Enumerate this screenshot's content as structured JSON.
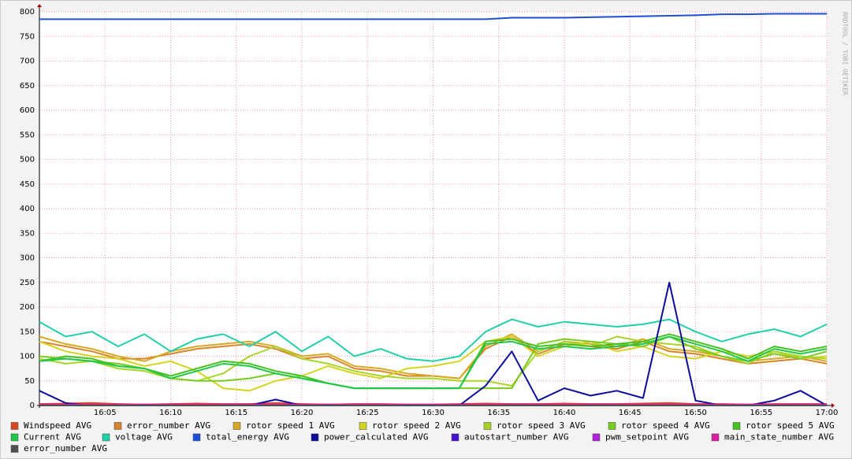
{
  "chart_data": {
    "type": "line",
    "watermark": "RRDTOOL / TOBI OETIKER",
    "x": [
      0,
      2,
      4,
      6,
      8,
      10,
      12,
      14,
      16,
      18,
      20,
      22,
      24,
      26,
      28,
      30,
      32,
      34,
      36,
      38,
      40,
      42,
      44,
      46,
      48,
      50,
      52,
      54,
      56,
      58,
      60
    ],
    "xlim": [
      0,
      60
    ],
    "xticks": [
      {
        "value": 5,
        "label": "16:05"
      },
      {
        "value": 10,
        "label": "16:10"
      },
      {
        "value": 15,
        "label": "16:15"
      },
      {
        "value": 20,
        "label": "16:20"
      },
      {
        "value": 25,
        "label": "16:25"
      },
      {
        "value": 30,
        "label": "16:30"
      },
      {
        "value": 35,
        "label": "16:35"
      },
      {
        "value": 40,
        "label": "16:40"
      },
      {
        "value": 45,
        "label": "16:45"
      },
      {
        "value": 50,
        "label": "16:50"
      },
      {
        "value": 55,
        "label": "16:55"
      },
      {
        "value": 60,
        "label": "17:00"
      }
    ],
    "ylim": [
      0,
      800
    ],
    "yticks": [
      0,
      50,
      100,
      150,
      200,
      250,
      300,
      350,
      400,
      450,
      500,
      550,
      600,
      650,
      700,
      750,
      800
    ],
    "grid": true,
    "legend": "bottom",
    "series": [
      {
        "name": "Windspeed AVG",
        "color": "#d8481c",
        "values": [
          3,
          4,
          5,
          3,
          2,
          3,
          4,
          3,
          3,
          5,
          3,
          2,
          3,
          3,
          2,
          2,
          3,
          4,
          3,
          3,
          4,
          3,
          3,
          4,
          5,
          3,
          3,
          2,
          3,
          3,
          3
        ]
      },
      {
        "name": "error_number AVG",
        "color": "#d8842a",
        "values": [
          130,
          120,
          110,
          95,
          95,
          105,
          115,
          120,
          125,
          115,
          95,
          100,
          75,
          70,
          60,
          60,
          55,
          115,
          140,
          105,
          125,
          120,
          115,
          130,
          110,
          105,
          95,
          85,
          90,
          95,
          85
        ]
      },
      {
        "name": "rotor speed 1 AVG",
        "color": "#d8a820",
        "values": [
          140,
          125,
          115,
          100,
          90,
          110,
          120,
          125,
          130,
          120,
          100,
          105,
          80,
          75,
          65,
          60,
          55,
          120,
          145,
          110,
          130,
          125,
          120,
          135,
          115,
          110,
          100,
          90,
          95,
          100,
          90
        ]
      },
      {
        "name": "rotor speed 2 AVG",
        "color": "#d4d420",
        "values": [
          130,
          110,
          100,
          95,
          80,
          90,
          70,
          35,
          30,
          50,
          60,
          80,
          65,
          55,
          75,
          80,
          90,
          130,
          140,
          100,
          120,
          130,
          110,
          120,
          100,
          95,
          110,
          100,
          110,
          95,
          100
        ]
      },
      {
        "name": "rotor speed 3 AVG",
        "color": "#a8d428",
        "values": [
          95,
          85,
          90,
          75,
          70,
          55,
          50,
          65,
          100,
          120,
          95,
          85,
          70,
          60,
          55,
          55,
          50,
          50,
          40,
          110,
          130,
          120,
          140,
          130,
          125,
          120,
          100,
          85,
          110,
          100,
          95
        ]
      },
      {
        "name": "rotor speed 4 AVG",
        "color": "#78cc20",
        "values": [
          100,
          95,
          90,
          85,
          75,
          55,
          50,
          50,
          55,
          65,
          55,
          45,
          35,
          35,
          35,
          35,
          35,
          35,
          35,
          125,
          135,
          130,
          125,
          120,
          140,
          115,
          100,
          90,
          105,
          95,
          110
        ]
      },
      {
        "name": "rotor speed 5 AVG",
        "color": "#48c020",
        "values": [
          90,
          100,
          95,
          80,
          75,
          60,
          75,
          90,
          85,
          70,
          60,
          45,
          35,
          35,
          35,
          35,
          35,
          130,
          135,
          120,
          125,
          120,
          125,
          130,
          145,
          130,
          115,
          95,
          120,
          110,
          120
        ]
      },
      {
        "name": "Current AVG",
        "color": "#20c84a",
        "values": [
          90,
          95,
          90,
          80,
          75,
          55,
          70,
          85,
          80,
          65,
          55,
          45,
          35,
          35,
          35,
          35,
          35,
          125,
          130,
          115,
          120,
          115,
          120,
          125,
          140,
          125,
          110,
          90,
          115,
          105,
          115
        ]
      },
      {
        "name": "voltage AVG",
        "color": "#20d0a8",
        "values": [
          170,
          140,
          150,
          120,
          145,
          110,
          135,
          145,
          120,
          150,
          110,
          140,
          100,
          115,
          95,
          90,
          100,
          150,
          175,
          160,
          170,
          165,
          160,
          165,
          175,
          150,
          130,
          145,
          155,
          140,
          165
        ]
      },
      {
        "name": "total_energy AVG",
        "color": "#1c4ed8",
        "values": [
          785,
          785,
          785,
          785,
          785,
          785,
          785,
          785,
          785,
          785,
          785,
          785,
          785,
          785,
          785,
          785,
          785,
          785,
          788,
          788,
          788,
          789,
          790,
          791,
          792,
          793,
          795,
          795,
          796,
          796,
          796
        ]
      },
      {
        "name": "power_calculated AVG",
        "color": "#0c0c9c",
        "values": [
          30,
          5,
          0,
          0,
          0,
          0,
          0,
          0,
          0,
          12,
          0,
          0,
          0,
          0,
          0,
          0,
          0,
          40,
          110,
          10,
          35,
          20,
          30,
          15,
          250,
          10,
          0,
          0,
          10,
          30,
          0
        ]
      },
      {
        "name": "autostart_number AVG",
        "color": "#4a10d0",
        "values": [
          0,
          0,
          0,
          0,
          0,
          0,
          0,
          0,
          0,
          0,
          0,
          0,
          0,
          0,
          0,
          0,
          0,
          0,
          0,
          0,
          0,
          0,
          0,
          0,
          0,
          0,
          0,
          0,
          0,
          0,
          0
        ]
      },
      {
        "name": "pwm_setpoint AVG",
        "color": "#b020d8",
        "values": [
          0,
          0,
          0,
          0,
          0,
          0,
          0,
          0,
          0,
          0,
          0,
          0,
          0,
          0,
          0,
          0,
          0,
          0,
          0,
          0,
          0,
          0,
          0,
          0,
          0,
          0,
          0,
          0,
          0,
          0,
          0
        ]
      },
      {
        "name": "main_state_number AVG",
        "color": "#d820a0",
        "values": [
          2,
          2,
          2,
          2,
          2,
          2,
          2,
          2,
          2,
          2,
          2,
          2,
          2,
          2,
          2,
          2,
          2,
          2,
          2,
          2,
          2,
          2,
          2,
          2,
          2,
          2,
          2,
          2,
          2,
          2,
          2
        ]
      },
      {
        "name": "error_number AVG",
        "color": "#505050",
        "values": [
          0,
          0,
          0,
          0,
          0,
          0,
          0,
          0,
          0,
          0,
          0,
          0,
          0,
          0,
          0,
          0,
          0,
          0,
          0,
          0,
          0,
          0,
          0,
          0,
          0,
          0,
          0,
          0,
          0,
          0,
          0
        ]
      }
    ]
  }
}
